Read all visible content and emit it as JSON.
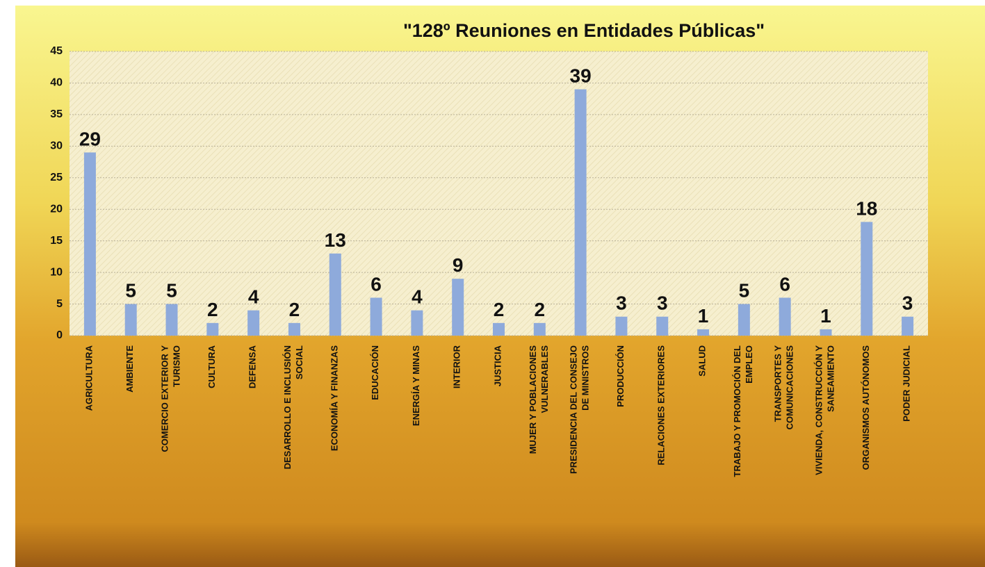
{
  "chart_data": {
    "type": "bar",
    "title": "\"128º Reuniones  en Entidades Públicas\"",
    "categories": [
      "AGRICULTURA",
      "AMBIENTE",
      "COMERCIO EXTERIOR Y TURISMO",
      "CULTURA",
      "DEFENSA",
      "DESARROLLO E INCLUSIÓN SOCIAL",
      "ECONOMÍA Y FINANZAS",
      "EDUCACIÓN",
      "ENERGÍA Y MINAS",
      "INTERIOR",
      "JUSTICIA",
      "MUJER Y POBLACIONES VULNERABLES",
      "PRESIDENCIA DEL CONSEJO DE MINISTROS",
      "PRODUCCIÓN",
      "RELACIONES EXTERIORES",
      "SALUD",
      "TRABAJO Y PROMOCIÓN DEL EMPLEO",
      "TRANSPORTES Y COMUNICACIONES",
      "VIVIENDA, CONSTRUCCIÓN Y SANEAMIENTO",
      "ORGANISMOS AUTÓNOMOS",
      "PODER JUDICIAL"
    ],
    "values": [
      29,
      5,
      5,
      2,
      4,
      2,
      13,
      6,
      4,
      9,
      2,
      2,
      39,
      3,
      3,
      1,
      5,
      6,
      1,
      18,
      3
    ],
    "color": "#8eaadb",
    "ylim": [
      0,
      45
    ],
    "yticks": [
      0,
      5,
      10,
      15,
      20,
      25,
      30,
      35,
      40,
      45
    ],
    "grid": true
  }
}
